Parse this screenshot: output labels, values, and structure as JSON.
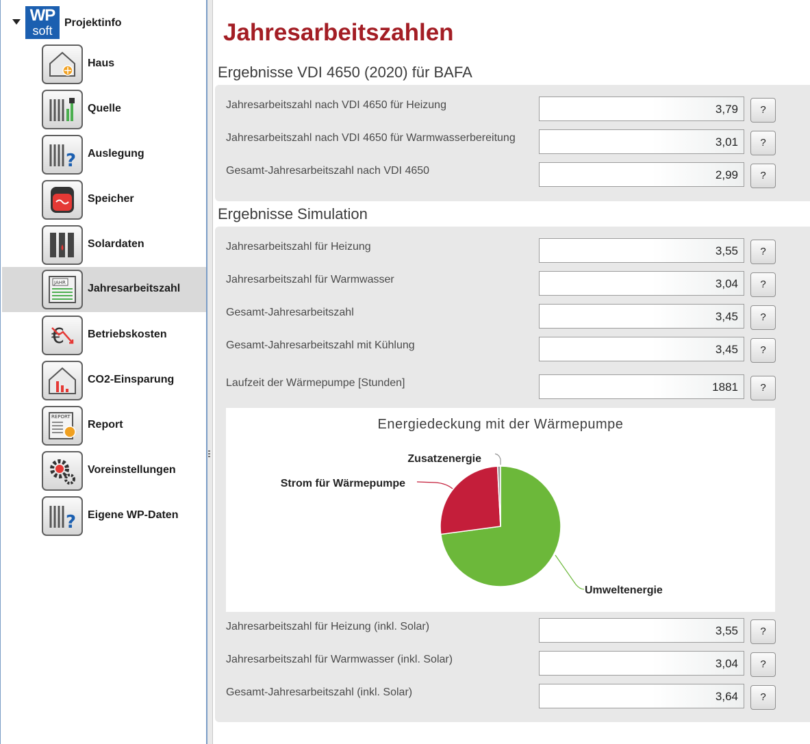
{
  "sidebar": {
    "root": {
      "logo_top": "WP",
      "logo_bottom": "soft",
      "label": "Projektinfo"
    },
    "items": [
      {
        "label": "Haus",
        "icon": "house-icon",
        "selected": false
      },
      {
        "label": "Quelle",
        "icon": "source-icon",
        "selected": false
      },
      {
        "label": "Auslegung",
        "icon": "design-icon",
        "selected": false
      },
      {
        "label": "Speicher",
        "icon": "storage-tank-icon",
        "selected": false
      },
      {
        "label": "Solardaten",
        "icon": "solar-data-icon",
        "selected": false
      },
      {
        "label": "Jahresarbeitszahl",
        "icon": "calendar-year-icon",
        "selected": true
      },
      {
        "label": "Betriebskosten",
        "icon": "euro-cost-icon",
        "selected": false
      },
      {
        "label": "CO2-Einsparung",
        "icon": "co2-house-icon",
        "selected": false
      },
      {
        "label": "Report",
        "icon": "report-icon",
        "selected": false
      },
      {
        "label": "Voreinstellungen",
        "icon": "gear-icon",
        "selected": false
      },
      {
        "label": "Eigene WP-Daten",
        "icon": "own-data-icon",
        "selected": false
      }
    ]
  },
  "main": {
    "title": "Jahresarbeitszahlen",
    "vdi": {
      "heading": "Ergebnisse VDI 4650 (2020) für BAFA",
      "rows": [
        {
          "label": "Jahresarbeitszahl nach VDI 4650 für Heizung",
          "value": "3,79",
          "help": "?"
        },
        {
          "label": "Jahresarbeitszahl nach VDI 4650 für Warmwasserbereitung",
          "value": "3,01",
          "help": "?"
        },
        {
          "label": "Gesamt-Jahresarbeitszahl nach VDI 4650",
          "value": "2,99",
          "help": "?"
        }
      ]
    },
    "simulation": {
      "heading": "Ergebnisse Simulation",
      "rows": [
        {
          "label": "Jahresarbeitszahl für Heizung",
          "value": "3,55",
          "help": "?"
        },
        {
          "label": "Jahresarbeitszahl für Warmwasser",
          "value": "3,04",
          "help": "?"
        },
        {
          "label": "Gesamt-Jahresarbeitszahl",
          "value": "3,45",
          "help": "?"
        },
        {
          "label": "Gesamt-Jahresarbeitszahl mit Kühlung",
          "value": "3,45",
          "help": "?"
        },
        {
          "label": "Laufzeit der Wärmepumpe [Stunden]",
          "value": "1881",
          "help": "?"
        }
      ],
      "solar_rows": [
        {
          "label": "Jahresarbeitszahl für Heizung (inkl. Solar)",
          "value": "3,55",
          "help": "?"
        },
        {
          "label": "Jahresarbeitszahl für Warmwasser (inkl. Solar)",
          "value": "3,04",
          "help": "?"
        },
        {
          "label": "Gesamt-Jahresarbeitszahl (inkl. Solar)",
          "value": "3,64",
          "help": "?"
        }
      ]
    }
  },
  "chart_data": {
    "type": "pie",
    "title": "Energiedeckung mit der Wärmepumpe",
    "slices": [
      {
        "label": "Umweltenergie",
        "value": 72.9,
        "color": "#6cb83a"
      },
      {
        "label": "Strom für Wärmepumpe",
        "value": 26.3,
        "color": "#c41e3a"
      },
      {
        "label": "Zusatzenergie",
        "value": 0.8,
        "color": "#9a9a9a"
      }
    ],
    "legend": "none"
  }
}
